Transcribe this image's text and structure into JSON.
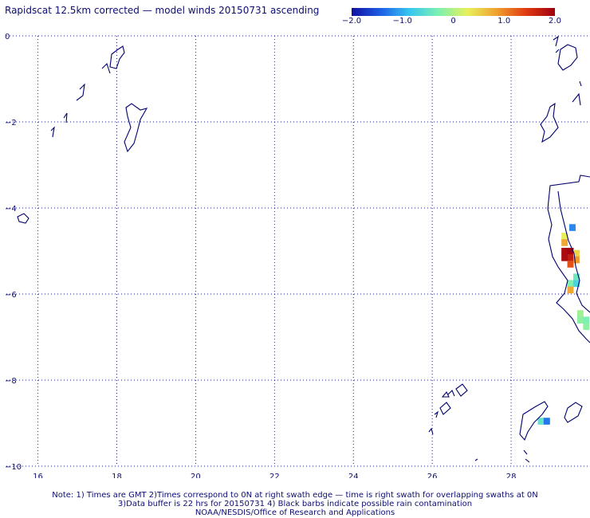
{
  "title": "Rapidscat 12.5km corrected — model winds 20150731 ascending",
  "colorbar": {
    "tick_labels": [
      "−2.0",
      "−1.0",
      "0",
      "1.0",
      "2.0"
    ],
    "tick_values": [
      -2.0,
      -1.0,
      0,
      1.0,
      2.0
    ],
    "range": [
      -2.0,
      2.0
    ],
    "colors": [
      "#1010a0",
      "#1e5fe6",
      "#38c8f0",
      "#7ef0b0",
      "#e8f05a",
      "#f0a030",
      "#e03a10",
      "#a00010"
    ]
  },
  "map": {
    "longitude_ticks": [
      "16",
      "18",
      "20",
      "22",
      "24",
      "26",
      "28"
    ],
    "latitude_ticks": [
      "0",
      "−2",
      "−4",
      "−6",
      "−8",
      "−10"
    ],
    "lon_range": [
      15.2,
      30.0
    ],
    "lat_range": [
      -10,
      0
    ],
    "coastline_color": "#00006e",
    "grid_color": "#1a1a90",
    "grid_style": "dotted"
  },
  "wind_cells": [
    {
      "lon": 29.55,
      "lat": -4.45,
      "v": -1.2
    },
    {
      "lon": 29.35,
      "lat": -4.65,
      "v": 0.3
    },
    {
      "lon": 29.35,
      "lat": -4.8,
      "v": 0.8
    },
    {
      "lon": 29.35,
      "lat": -5.0,
      "v": 1.9
    },
    {
      "lon": 29.5,
      "lat": -5.0,
      "v": 2.0
    },
    {
      "lon": 29.5,
      "lat": -5.15,
      "v": 1.7
    },
    {
      "lon": 29.65,
      "lat": -5.05,
      "v": 0.5
    },
    {
      "lon": 29.35,
      "lat": -5.15,
      "v": 1.9
    },
    {
      "lon": 29.5,
      "lat": -5.3,
      "v": 1.3
    },
    {
      "lon": 29.65,
      "lat": -5.2,
      "v": 0.9
    },
    {
      "lon": 29.65,
      "lat": -5.6,
      "v": -0.4
    },
    {
      "lon": 29.5,
      "lat": -5.75,
      "v": -0.3
    },
    {
      "lon": 29.65,
      "lat": -5.75,
      "v": -0.7
    },
    {
      "lon": 29.5,
      "lat": -5.9,
      "v": 0.8
    },
    {
      "lon": 29.75,
      "lat": -6.45,
      "v": -0.1
    },
    {
      "lon": 29.75,
      "lat": -6.6,
      "v": -0.2
    },
    {
      "lon": 29.9,
      "lat": -6.6,
      "v": -0.3
    },
    {
      "lon": 29.9,
      "lat": -6.75,
      "v": -0.2
    },
    {
      "lon": 28.75,
      "lat": -8.95,
      "v": -0.5
    },
    {
      "lon": 28.9,
      "lat": -8.95,
      "v": -1.3
    }
  ],
  "footer": {
    "line1": "Note: 1) Times are GMT 2)Times correspond to 0N at right swath edge — time is right swath for overlapping swaths at 0N",
    "line2": "3)Data buffer is 22 hrs for 20150731 4) Black barbs indicate possible rain contamination",
    "line3": "NOAA/NESDIS/Office of Research and Applications"
  }
}
